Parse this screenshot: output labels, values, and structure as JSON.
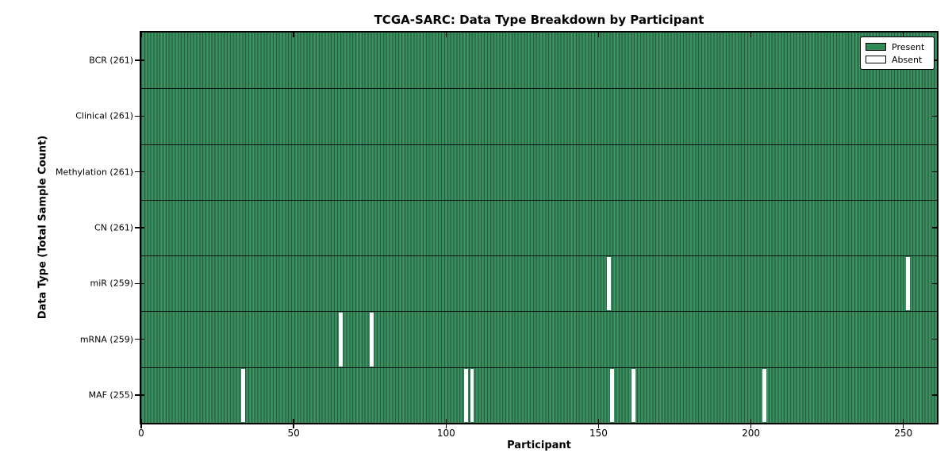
{
  "figure": {
    "title": "TCGA-SARC: Data Type Breakdown by Participant",
    "xlabel": "Participant",
    "ylabel": "Data Type (Total Sample Count)"
  },
  "legend": {
    "items": [
      {
        "label": "Present",
        "color": "#2e8b57"
      },
      {
        "label": "Absent",
        "color": "#ffffff"
      }
    ]
  },
  "colors": {
    "present": "#2e8b57",
    "present_bar_edge": "#0b381f",
    "present_highlight": "#3f9b66",
    "absent": "#ffffff",
    "axis": "#000000",
    "background": "#ffffff"
  },
  "chart_data": {
    "type": "heatmap",
    "title": "TCGA-SARC: Data Type Breakdown by Participant",
    "xlabel": "Participant",
    "ylabel": "Data Type (Total Sample Count)",
    "x_range": [
      0,
      261
    ],
    "x_ticks": [
      0,
      50,
      100,
      150,
      200,
      250
    ],
    "n_participants": 261,
    "grid": false,
    "legend_position": "upper right",
    "cell_states": {
      "present": 1,
      "absent": 0
    },
    "rows": [
      {
        "label": "BCR (261)",
        "data_type": "BCR",
        "total_samples": 261,
        "absent_participants": []
      },
      {
        "label": "Clinical (261)",
        "data_type": "Clinical",
        "total_samples": 261,
        "absent_participants": []
      },
      {
        "label": "Methylation (261)",
        "data_type": "Methylation",
        "total_samples": 261,
        "absent_participants": []
      },
      {
        "label": "CN (261)",
        "data_type": "CN",
        "total_samples": 261,
        "absent_participants": []
      },
      {
        "label": "miR (259)",
        "data_type": "miR",
        "total_samples": 259,
        "absent_participants": [
          153,
          251
        ]
      },
      {
        "label": "mRNA (259)",
        "data_type": "mRNA",
        "total_samples": 259,
        "absent_participants": [
          65,
          75
        ]
      },
      {
        "label": "MAF (255)",
        "data_type": "MAF",
        "total_samples": 255,
        "absent_participants": [
          33,
          106,
          108,
          154,
          161,
          204
        ]
      }
    ]
  }
}
